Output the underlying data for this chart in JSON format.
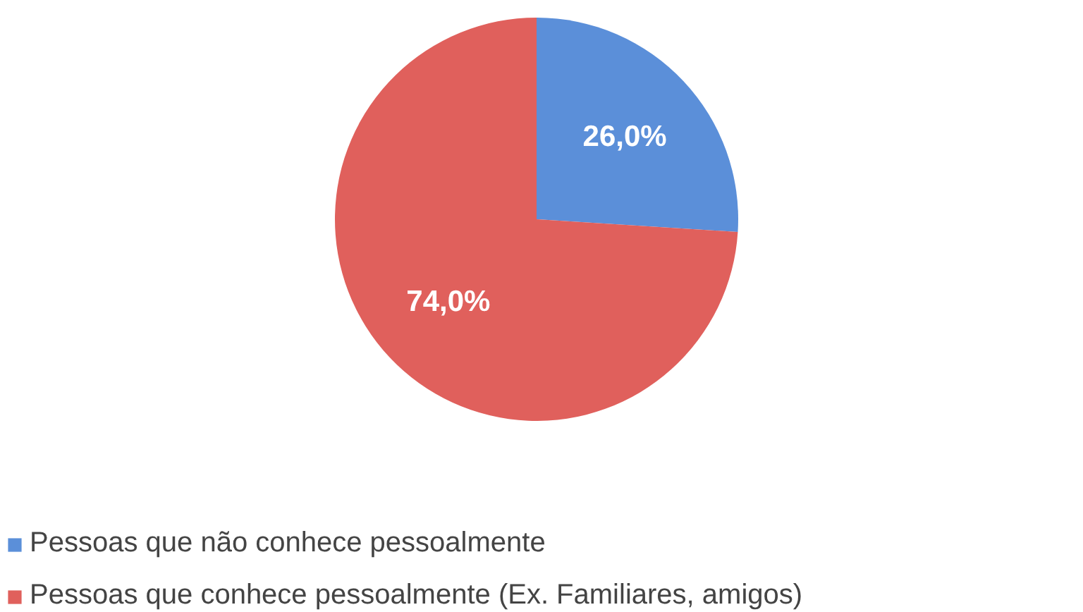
{
  "chart_data": {
    "type": "pie",
    "categories": [
      "Pessoas que não conhece pessoalmente",
      "Pessoas que conhece pessoalmente (Ex. Familiares, amigos)"
    ],
    "values": [
      26,
      74
    ],
    "colors": [
      "#5b8fd9",
      "#e0605c"
    ],
    "value_labels": [
      "26,0%",
      "74,0%"
    ],
    "legend": "bottom"
  }
}
